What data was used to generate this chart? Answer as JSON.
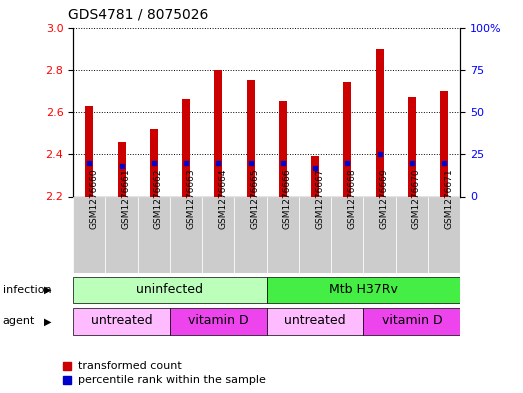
{
  "title": "GDS4781 / 8075026",
  "samples": [
    "GSM1276660",
    "GSM1276661",
    "GSM1276662",
    "GSM1276663",
    "GSM1276664",
    "GSM1276665",
    "GSM1276666",
    "GSM1276667",
    "GSM1276668",
    "GSM1276669",
    "GSM1276670",
    "GSM1276671"
  ],
  "transformed_count": [
    2.63,
    2.46,
    2.52,
    2.66,
    2.8,
    2.75,
    2.65,
    2.39,
    2.74,
    2.9,
    2.67,
    2.7
  ],
  "percentile_rank": [
    20,
    18,
    20,
    20,
    20,
    20,
    20,
    17,
    20,
    25,
    20,
    20
  ],
  "ylim_left": [
    2.2,
    3.0
  ],
  "ylim_right": [
    0,
    100
  ],
  "yticks_left": [
    2.2,
    2.4,
    2.6,
    2.8,
    3.0
  ],
  "yticks_right": [
    0,
    25,
    50,
    75,
    100
  ],
  "bar_color": "#cc0000",
  "percentile_color": "#0000cc",
  "bar_bottom": 2.2,
  "infection_labels": [
    {
      "text": "uninfected",
      "start": 0,
      "end": 5,
      "color": "#bbffbb"
    },
    {
      "text": "Mtb H37Rv",
      "start": 6,
      "end": 11,
      "color": "#44ee44"
    }
  ],
  "agent_labels": [
    {
      "text": "untreated",
      "start": 0,
      "end": 2,
      "color": "#ffbbff"
    },
    {
      "text": "vitamin D",
      "start": 3,
      "end": 5,
      "color": "#ee44ee"
    },
    {
      "text": "untreated",
      "start": 6,
      "end": 8,
      "color": "#ffbbff"
    },
    {
      "text": "vitamin D",
      "start": 9,
      "end": 11,
      "color": "#ee44ee"
    }
  ],
  "legend_items": [
    {
      "label": "transformed count",
      "color": "#cc0000"
    },
    {
      "label": "percentile rank within the sample",
      "color": "#0000cc"
    }
  ],
  "infection_row_label": "infection",
  "agent_row_label": "agent",
  "xtick_bg": "#cccccc",
  "plot_bg": "#ffffff"
}
